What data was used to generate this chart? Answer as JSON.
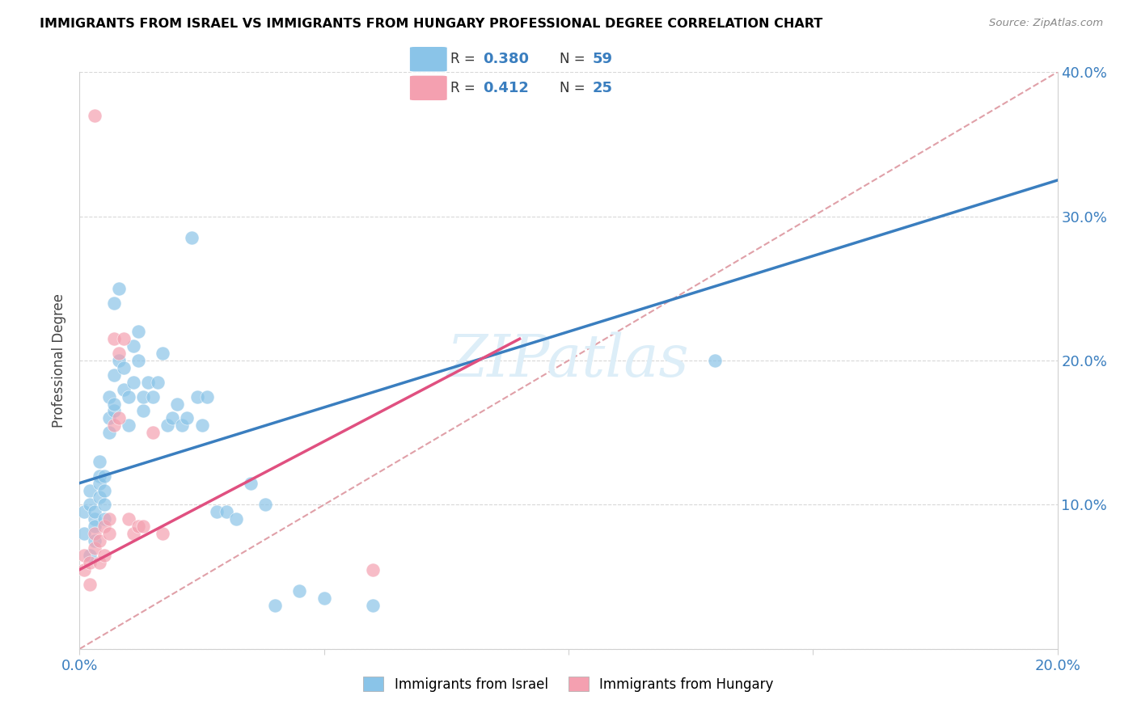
{
  "title": "IMMIGRANTS FROM ISRAEL VS IMMIGRANTS FROM HUNGARY PROFESSIONAL DEGREE CORRELATION CHART",
  "source": "Source: ZipAtlas.com",
  "ylabel": "Professional Degree",
  "xlim": [
    0.0,
    0.2
  ],
  "ylim": [
    0.0,
    0.4
  ],
  "xticks": [
    0.0,
    0.05,
    0.1,
    0.15,
    0.2
  ],
  "xticklabels": [
    "0.0%",
    "",
    "",
    "",
    "20.0%"
  ],
  "yticks": [
    0.0,
    0.1,
    0.2,
    0.3,
    0.4
  ],
  "right_yticklabels": [
    "",
    "10.0%",
    "20.0%",
    "30.0%",
    "40.0%"
  ],
  "israel_color": "#8ac4e8",
  "hungary_color": "#f4a0b0",
  "israel_R": 0.38,
  "israel_N": 59,
  "hungary_R": 0.412,
  "hungary_N": 25,
  "israel_scatter_x": [
    0.001,
    0.001,
    0.002,
    0.002,
    0.002,
    0.003,
    0.003,
    0.003,
    0.003,
    0.004,
    0.004,
    0.004,
    0.004,
    0.005,
    0.005,
    0.005,
    0.005,
    0.006,
    0.006,
    0.006,
    0.007,
    0.007,
    0.007,
    0.007,
    0.008,
    0.008,
    0.009,
    0.009,
    0.01,
    0.01,
    0.011,
    0.011,
    0.012,
    0.012,
    0.013,
    0.013,
    0.014,
    0.015,
    0.016,
    0.017,
    0.018,
    0.019,
    0.02,
    0.021,
    0.022,
    0.023,
    0.024,
    0.025,
    0.026,
    0.028,
    0.03,
    0.032,
    0.035,
    0.038,
    0.04,
    0.045,
    0.05,
    0.06,
    0.13
  ],
  "israel_scatter_y": [
    0.095,
    0.08,
    0.11,
    0.1,
    0.065,
    0.09,
    0.085,
    0.095,
    0.075,
    0.12,
    0.115,
    0.105,
    0.13,
    0.11,
    0.12,
    0.1,
    0.09,
    0.15,
    0.16,
    0.175,
    0.165,
    0.17,
    0.19,
    0.24,
    0.25,
    0.2,
    0.18,
    0.195,
    0.175,
    0.155,
    0.21,
    0.185,
    0.2,
    0.22,
    0.165,
    0.175,
    0.185,
    0.175,
    0.185,
    0.205,
    0.155,
    0.16,
    0.17,
    0.155,
    0.16,
    0.285,
    0.175,
    0.155,
    0.175,
    0.095,
    0.095,
    0.09,
    0.115,
    0.1,
    0.03,
    0.04,
    0.035,
    0.03,
    0.2
  ],
  "hungary_scatter_x": [
    0.001,
    0.001,
    0.002,
    0.002,
    0.003,
    0.003,
    0.004,
    0.004,
    0.005,
    0.005,
    0.006,
    0.006,
    0.007,
    0.007,
    0.008,
    0.008,
    0.009,
    0.01,
    0.011,
    0.012,
    0.013,
    0.015,
    0.017,
    0.06,
    0.003
  ],
  "hungary_scatter_y": [
    0.065,
    0.055,
    0.06,
    0.045,
    0.08,
    0.07,
    0.075,
    0.06,
    0.085,
    0.065,
    0.08,
    0.09,
    0.155,
    0.215,
    0.16,
    0.205,
    0.215,
    0.09,
    0.08,
    0.085,
    0.085,
    0.15,
    0.08,
    0.055,
    0.37
  ],
  "israel_line_color": "#3a7ebf",
  "hungary_line_color": "#e05080",
  "diagonal_color": "#e0a0a8",
  "watermark_text": "ZIPatlas",
  "watermark_color": "#ddeef8",
  "legend_israel_label": "Immigrants from Israel",
  "legend_hungary_label": "Immigrants from Hungary",
  "israel_line_x0": 0.0,
  "israel_line_y0": 0.115,
  "israel_line_x1": 0.2,
  "israel_line_y1": 0.325,
  "hungary_line_x0": 0.0,
  "hungary_line_y0": 0.055,
  "hungary_line_x1": 0.09,
  "hungary_line_y1": 0.215
}
